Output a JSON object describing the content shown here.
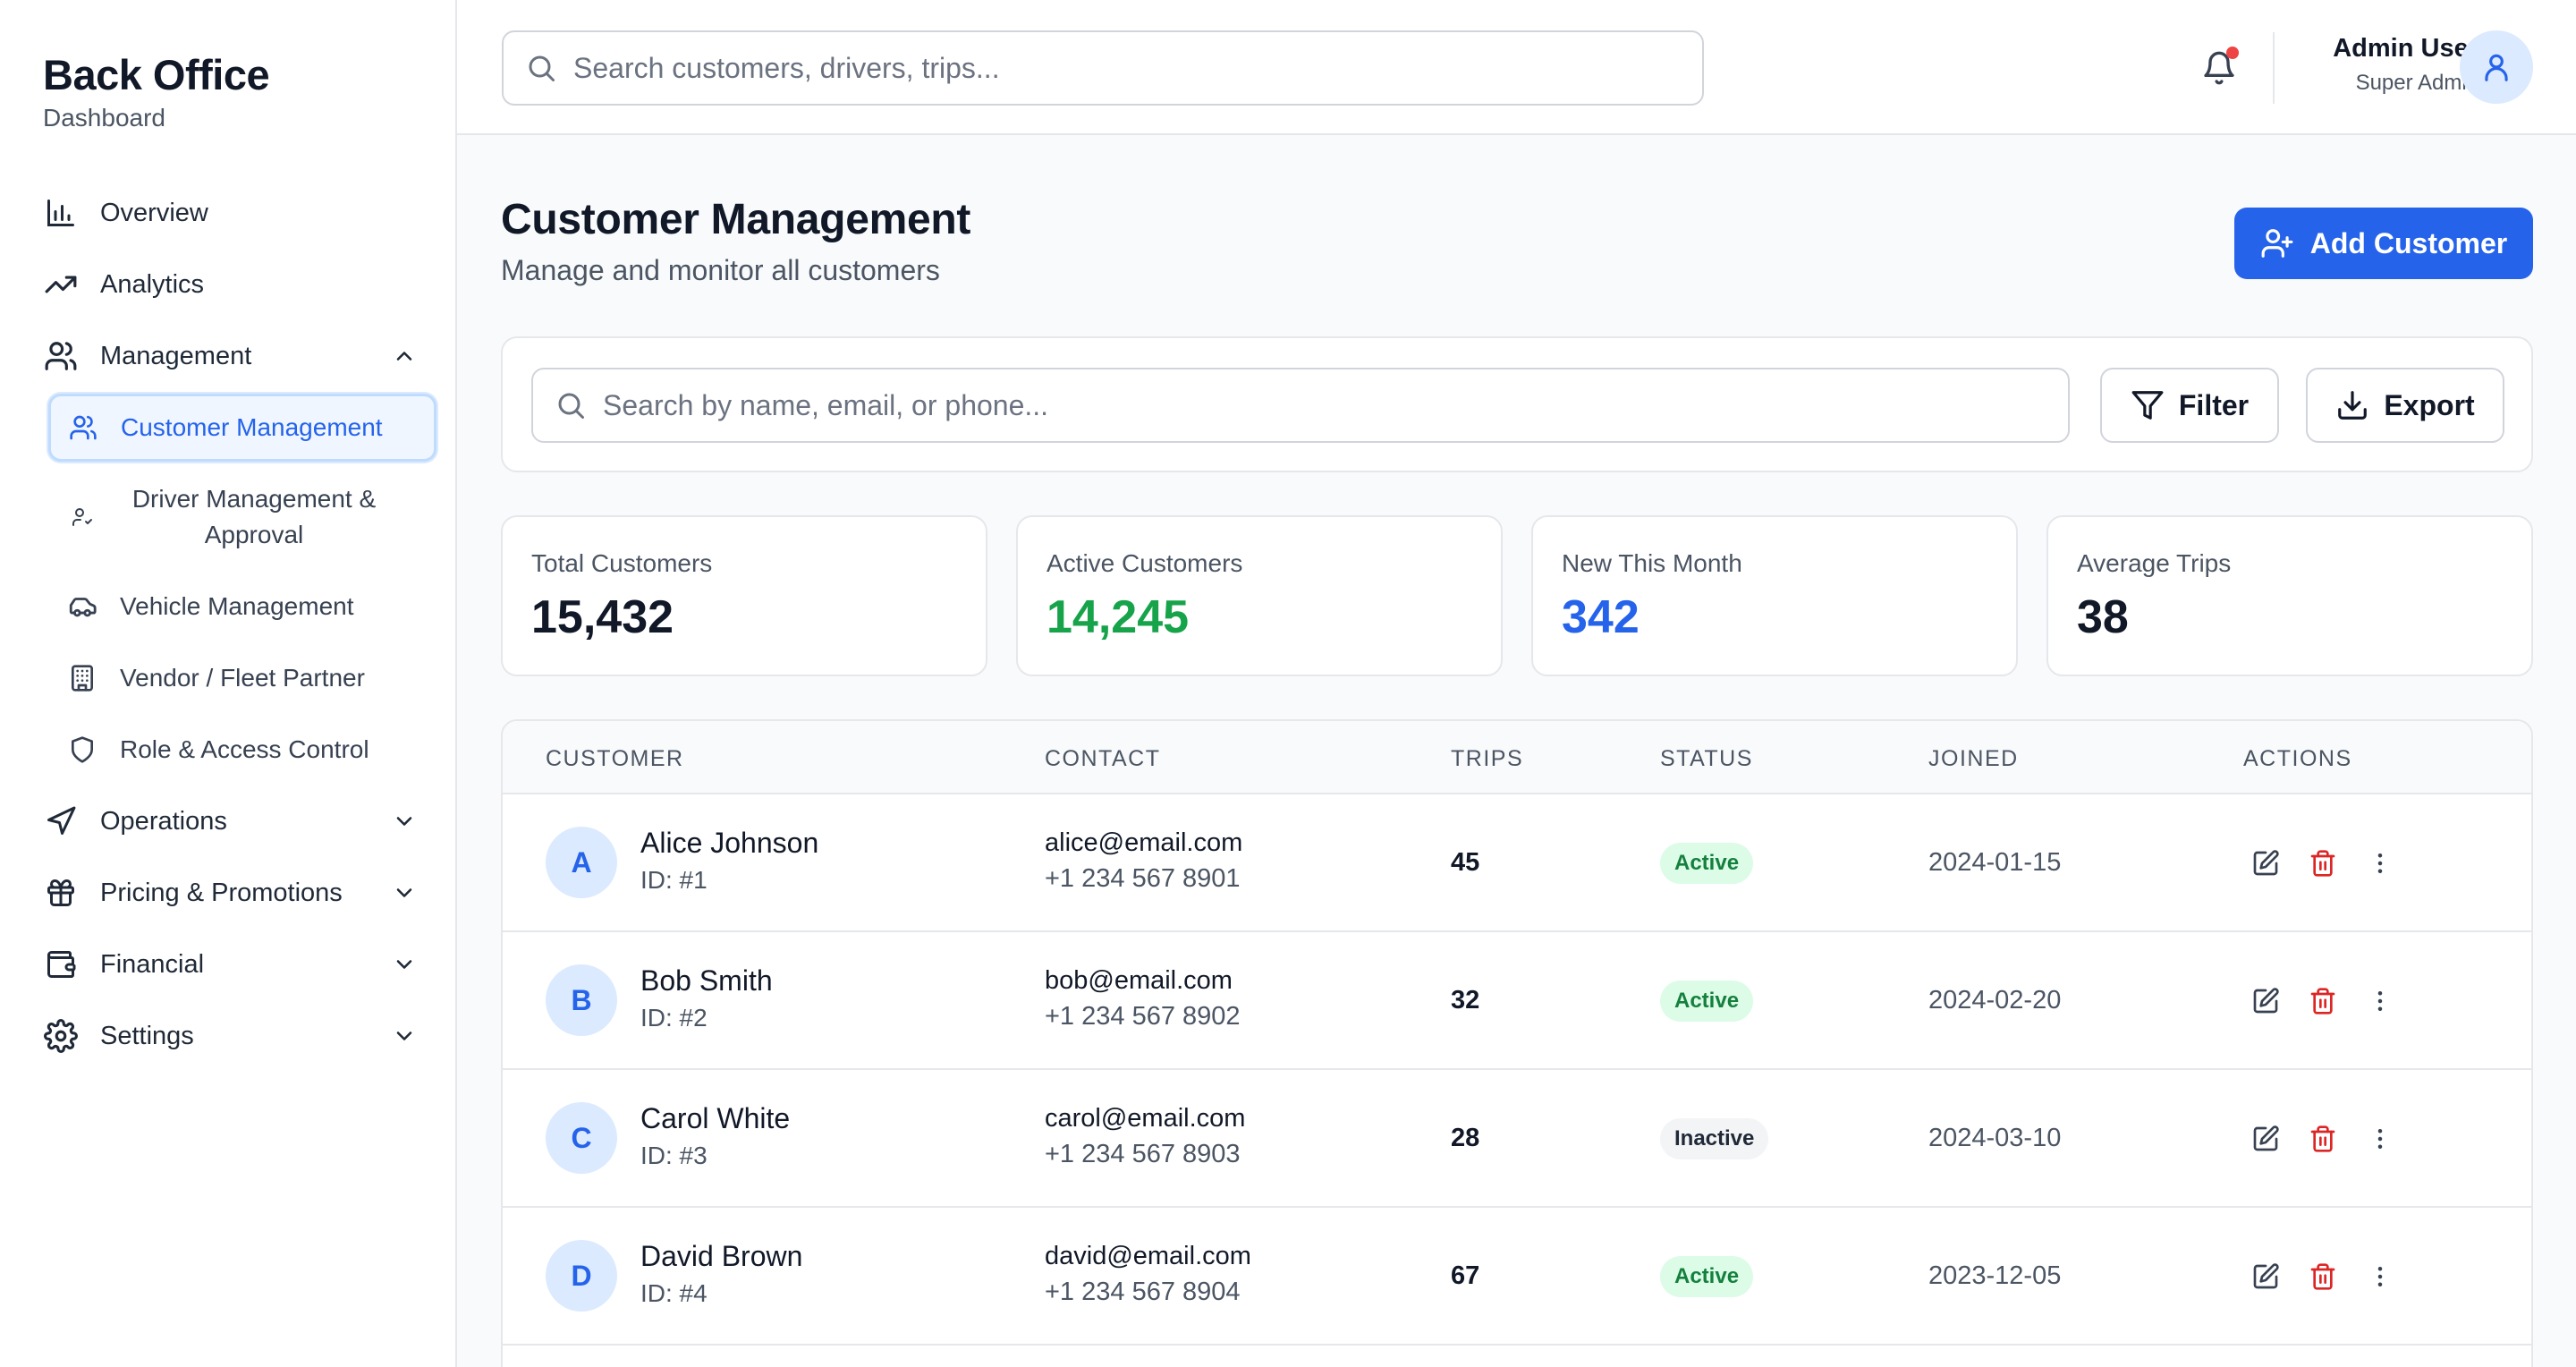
{
  "brand": {
    "title": "Back Office",
    "subtitle": "Dashboard"
  },
  "nav": {
    "overview": "Overview",
    "analytics": "Analytics",
    "management": "Management",
    "sub": {
      "customer": "Customer Management",
      "driver": "Driver Management & Approval",
      "vehicle": "Vehicle Management",
      "vendor": "Vendor / Fleet Partner",
      "role": "Role & Access Control"
    },
    "operations": "Operations",
    "pricing": "Pricing & Promotions",
    "financial": "Financial",
    "settings": "Settings"
  },
  "topbar": {
    "search_placeholder": "Search customers, drivers, trips...",
    "user_name": "Admin User",
    "user_role": "Super Admin"
  },
  "page": {
    "title": "Customer Management",
    "subtitle": "Manage and monitor all customers",
    "add_label": "Add Customer"
  },
  "filters": {
    "search_placeholder": "Search by name, email, or phone...",
    "filter_label": "Filter",
    "export_label": "Export"
  },
  "stats": [
    {
      "label": "Total Customers",
      "value": "15,432",
      "color": "#111827"
    },
    {
      "label": "Active Customers",
      "value": "14,245",
      "color": "#16a34a"
    },
    {
      "label": "New This Month",
      "value": "342",
      "color": "#2563eb"
    },
    {
      "label": "Average Trips",
      "value": "38",
      "color": "#111827"
    }
  ],
  "table": {
    "headers": [
      "CUSTOMER",
      "CONTACT",
      "TRIPS",
      "STATUS",
      "JOINED",
      "ACTIONS"
    ],
    "rows": [
      {
        "initial": "A",
        "name": "Alice Johnson",
        "id": "ID: #1",
        "email": "alice@email.com",
        "phone": "+1 234 567 8901",
        "trips": "45",
        "status": "Active",
        "joined": "2024-01-15"
      },
      {
        "initial": "B",
        "name": "Bob Smith",
        "id": "ID: #2",
        "email": "bob@email.com",
        "phone": "+1 234 567 8902",
        "trips": "32",
        "status": "Active",
        "joined": "2024-02-20"
      },
      {
        "initial": "C",
        "name": "Carol White",
        "id": "ID: #3",
        "email": "carol@email.com",
        "phone": "+1 234 567 8903",
        "trips": "28",
        "status": "Inactive",
        "joined": "2024-03-10"
      },
      {
        "initial": "D",
        "name": "David Brown",
        "id": "ID: #4",
        "email": "david@email.com",
        "phone": "+1 234 567 8904",
        "trips": "67",
        "status": "Active",
        "joined": "2023-12-05"
      }
    ]
  },
  "colors": {
    "accent": "#2563eb",
    "danger": "#dc2626",
    "success": "#16a34a"
  }
}
